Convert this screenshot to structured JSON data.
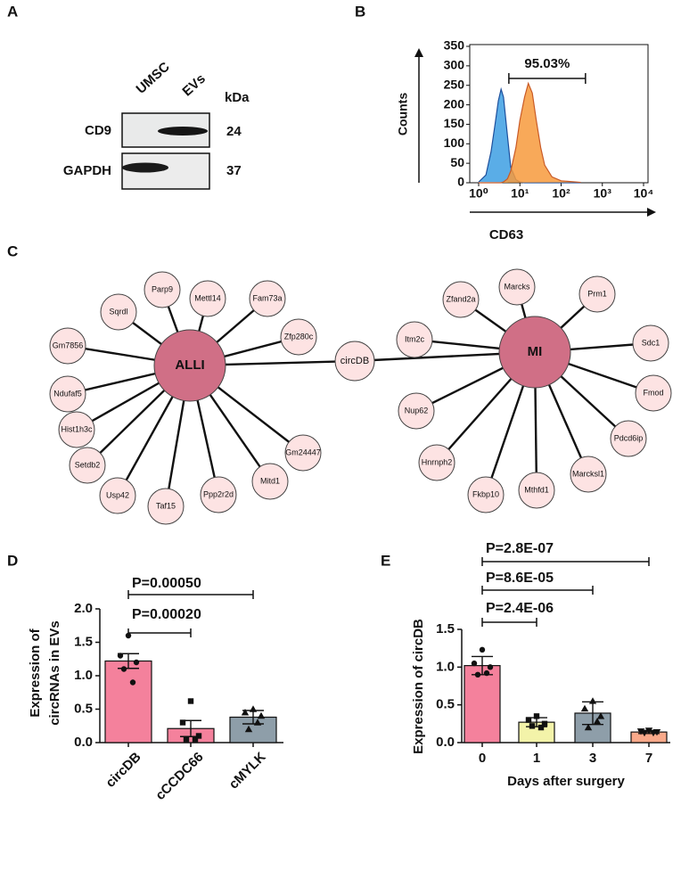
{
  "panel_labels": [
    "A",
    "B",
    "C",
    "D",
    "E"
  ],
  "blot": {
    "lanes": [
      "UMSC",
      "EVs"
    ],
    "unit": "kDa",
    "rows": [
      {
        "name": "CD9",
        "kda": "24"
      },
      {
        "name": "GAPDH",
        "kda": "37"
      }
    ]
  },
  "network": {
    "hubs": [
      "ALLI",
      "MI"
    ],
    "center": "circDB",
    "alli_nodes": [
      "Sqrdl",
      "Parp9",
      "Mettl14",
      "Fam73a",
      "Gm7856",
      "Zfp280c",
      "Ndufaf5",
      "Hist1h3c",
      "Setdb2",
      "Usp42",
      "Taf15",
      "Ppp2r2d",
      "Mitd1",
      "Gm24447"
    ],
    "mi_nodes": [
      "Zfand2a",
      "Marcks",
      "Prm1",
      "Itm2c",
      "Sdc1",
      "Fmod",
      "Nup62",
      "Pdcd6ip",
      "Hnrnph2",
      "Marcksl1",
      "Fkbp10",
      "Mthfd1"
    ]
  },
  "chart_data": [
    {
      "type": "histogram",
      "xlabel": "CD63",
      "ylabel": "Counts",
      "annotation": "95.03%",
      "gate": [
        5.4,
        390
      ],
      "log_x": true,
      "xlim": [
        1,
        10000
      ],
      "xticks": [
        {
          "value": 1,
          "label": "10⁰"
        },
        {
          "value": 10,
          "label": "10¹"
        },
        {
          "value": 100,
          "label": "10²"
        },
        {
          "value": 1000,
          "label": "10³"
        },
        {
          "value": 10000,
          "label": "10⁴"
        }
      ],
      "ylim": [
        0,
        350
      ],
      "yticks": [
        0,
        50,
        100,
        150,
        200,
        250,
        300,
        350
      ],
      "x": [
        1,
        1.5,
        2,
        2.5,
        3,
        3.5,
        4,
        5,
        6,
        8,
        10,
        13,
        16,
        20,
        25,
        32,
        40,
        60,
        100,
        300
      ],
      "series": [
        {
          "color": "#3d9fe3",
          "values": [
            2,
            20,
            80,
            150,
            210,
            240,
            220,
            120,
            40,
            8,
            2,
            0,
            0,
            0,
            0,
            0,
            0,
            0,
            0,
            0
          ]
        },
        {
          "color": "#f79a3c",
          "values": [
            0,
            0,
            0,
            0,
            0,
            0,
            2,
            10,
            30,
            90,
            160,
            220,
            255,
            230,
            160,
            90,
            45,
            15,
            5,
            1
          ]
        }
      ]
    },
    {
      "type": "bar",
      "ylabel": [
        "Expression of",
        "circRNAs in EVs"
      ],
      "categories": [
        "circDB",
        "cCCDC66",
        "cMYLK"
      ],
      "values": [
        1.22,
        0.21,
        0.38
      ],
      "errors": [
        0.11,
        0.12,
        0.1
      ],
      "colors": [
        "#f4819c",
        "#f4819c",
        "#8e9ea9"
      ],
      "markers": [
        "circle",
        "square",
        "triangle"
      ],
      "points": [
        [
          1.6,
          1.3,
          1.2,
          1.1,
          0.9
        ],
        [
          0.62,
          0.3,
          0.1,
          0.05,
          0.05
        ],
        [
          0.5,
          0.45,
          0.4,
          0.2,
          0.3
        ]
      ],
      "ylim": [
        0,
        2
      ],
      "yticks": [
        {
          "value": 0,
          "label": "0.0"
        },
        0.5,
        {
          "value": 1,
          "label": "1.0"
        },
        1.5,
        {
          "value": 2,
          "label": "2.0"
        }
      ],
      "comparisons": [
        {
          "from": 0,
          "to": 1,
          "label": "P=0.00020"
        },
        {
          "from": 0,
          "to": 2,
          "label": "P=0.00050"
        }
      ]
    },
    {
      "type": "bar",
      "ylabel": [
        "Expression of circDB"
      ],
      "xlabel": "Days after surgery",
      "categories": [
        "0",
        "1",
        "3",
        "7"
      ],
      "values": [
        1.02,
        0.27,
        0.39,
        0.14
      ],
      "errors": [
        0.12,
        0.06,
        0.15,
        0.02
      ],
      "colors": [
        "#f4819c",
        "#f3f3a9",
        "#8e9ea9",
        "#f9a98a"
      ],
      "markers": [
        "circle",
        "square",
        "triangle",
        "triangle-down"
      ],
      "points": [
        [
          1.23,
          1.05,
          1.0,
          0.9,
          0.92
        ],
        [
          0.35,
          0.3,
          0.25,
          0.22,
          0.2
        ],
        [
          0.55,
          0.45,
          0.35,
          0.2,
          0.28
        ],
        [
          0.16,
          0.15,
          0.14,
          0.13,
          0.13
        ]
      ],
      "ylim": [
        0,
        1.5
      ],
      "yticks": [
        {
          "value": 0,
          "label": "0.0"
        },
        0.5,
        {
          "value": 1,
          "label": "1.0"
        },
        1.5
      ],
      "comparisons": [
        {
          "from": 0,
          "to": 1,
          "label": "P=2.4E-06"
        },
        {
          "from": 0,
          "to": 2,
          "label": "P=8.6E-05"
        },
        {
          "from": 0,
          "to": 3,
          "label": "P=2.8E-07"
        }
      ]
    }
  ]
}
